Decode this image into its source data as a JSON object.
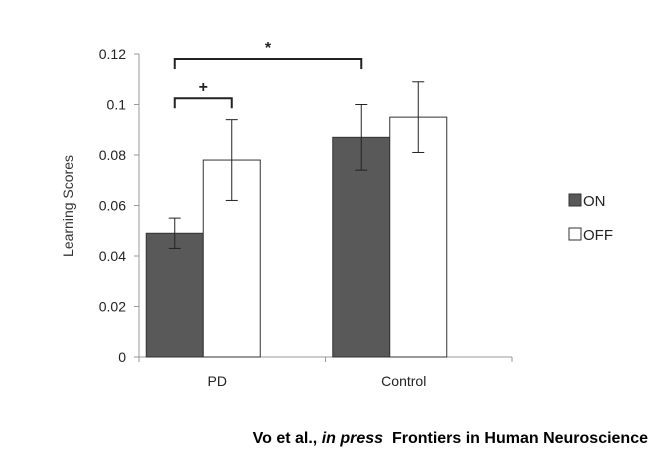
{
  "chart_data": {
    "type": "bar",
    "categories": [
      "PD",
      "Control"
    ],
    "series": [
      {
        "name": "ON",
        "values": [
          0.049,
          0.087
        ],
        "error_low": [
          0.043,
          0.074
        ],
        "error_high": [
          0.055,
          0.1
        ],
        "color": "#595959"
      },
      {
        "name": "OFF",
        "values": [
          0.078,
          0.095
        ],
        "error_low": [
          0.062,
          0.081
        ],
        "error_high": [
          0.094,
          0.109
        ],
        "color": "#ffffff"
      }
    ],
    "ylabel": "Learning Scores",
    "xlabel": "",
    "ylim": [
      0,
      0.12
    ],
    "yticks": [
      "0",
      "0.02",
      "0.04",
      "0.06",
      "0.08",
      "0.1",
      "0.12"
    ],
    "grid": false,
    "legend_position": "right",
    "annotations": [
      {
        "label": "*",
        "from": [
          "PD",
          "ON"
        ],
        "to": [
          "Control",
          "ON"
        ]
      },
      {
        "label": "+",
        "from": [
          "PD",
          "ON"
        ],
        "to": [
          "PD",
          "OFF"
        ]
      }
    ]
  },
  "citation": {
    "authors": "Vo et al.,",
    "status": "in press",
    "journal": "Frontiers in Human Neuroscience"
  }
}
